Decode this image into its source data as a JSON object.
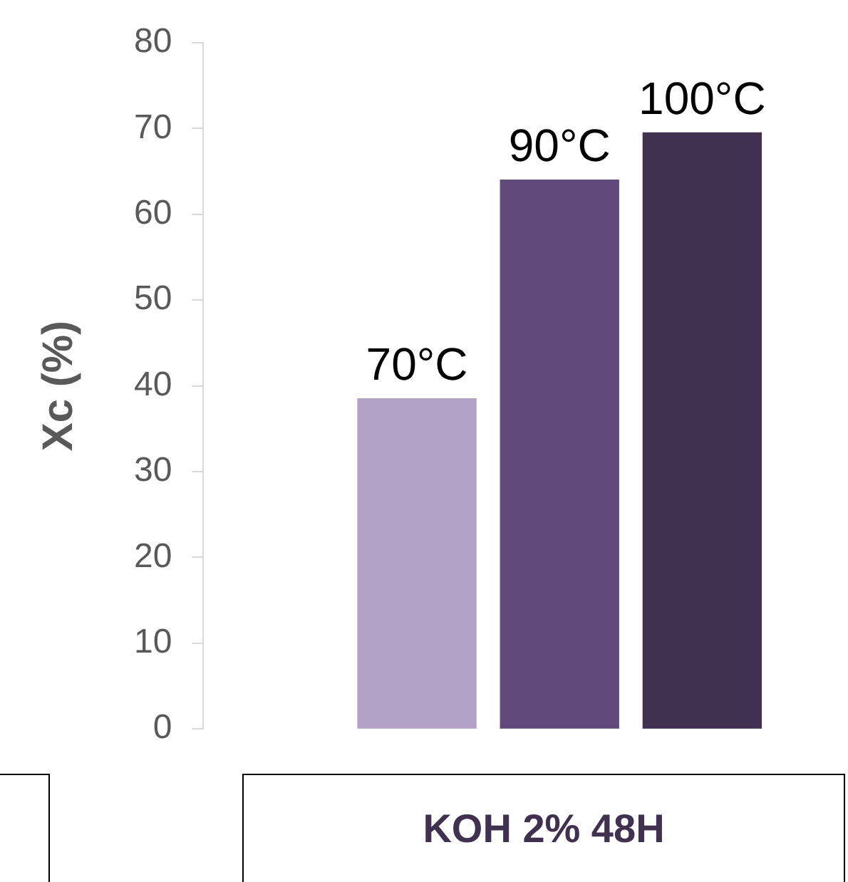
{
  "chart_data": {
    "type": "bar",
    "xlabel": "KOH 2% 48H",
    "ylabel": "Xc (%)",
    "categories": [
      "70°C",
      "90°C",
      "100°C"
    ],
    "values": [
      38.5,
      64,
      69.5
    ],
    "colors": [
      "#b3a2c8",
      "#604a7b",
      "#403151"
    ],
    "ylim": [
      0,
      80
    ],
    "yticks": [
      0,
      10,
      20,
      30,
      40,
      50,
      60,
      70,
      80
    ],
    "grid": false,
    "legend": false
  }
}
